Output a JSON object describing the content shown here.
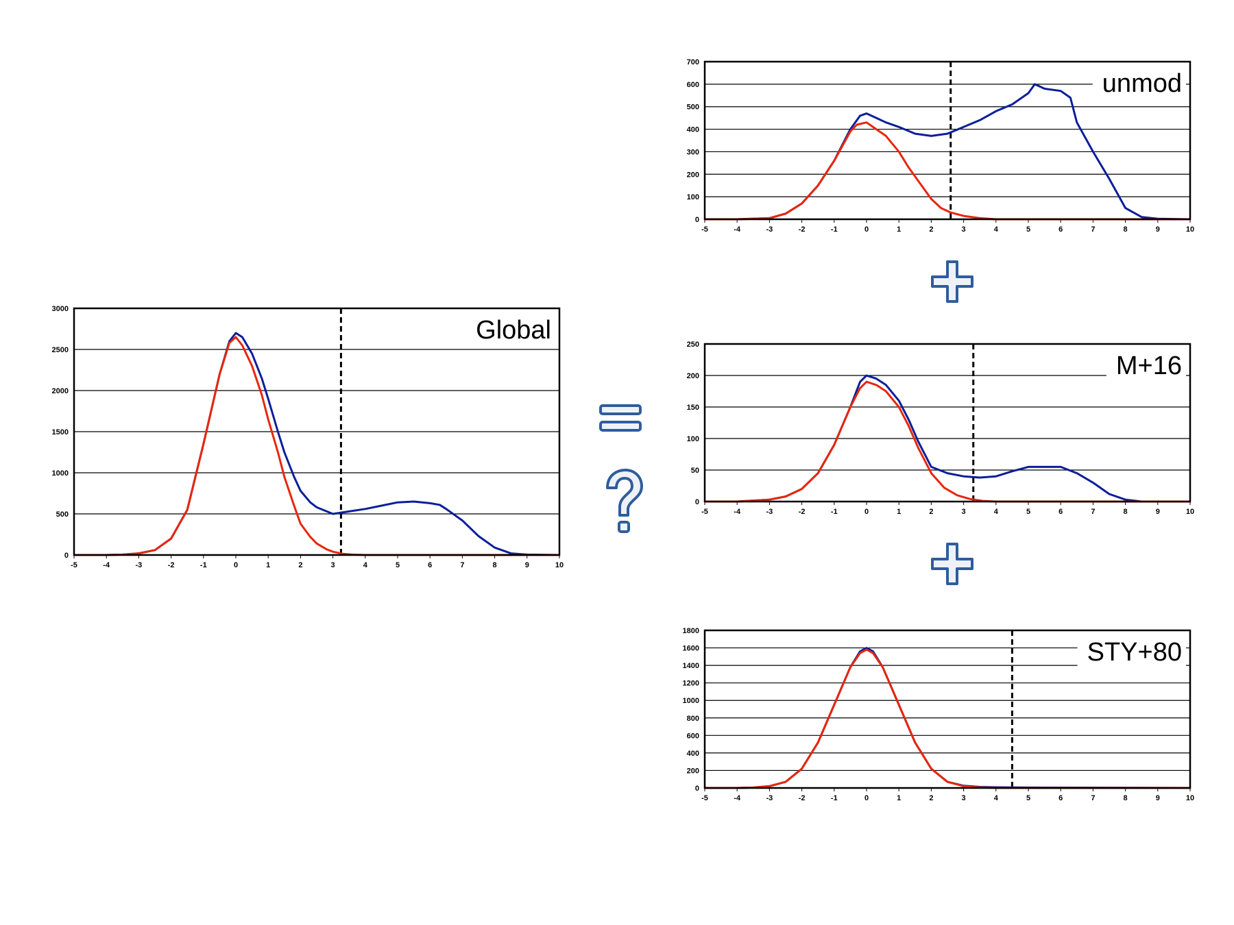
{
  "colors": {
    "blue_series": "#0b1e9a",
    "red_series": "#e8260c",
    "symbol_fill": "#eef2f8",
    "symbol_stroke": "#2f5d9c",
    "grid": "#000000",
    "threshold": "#000000"
  },
  "symbols": {
    "equals_icon": "equals-sign-icon",
    "question_icon": "question-mark-icon",
    "plus_icon": "plus-sign-icon"
  },
  "chart_data": [
    {
      "id": "global",
      "type": "line",
      "title": "Global",
      "xlim": [
        -5,
        10
      ],
      "ylim": [
        0,
        3000
      ],
      "x_ticks": [
        -5,
        -4,
        -3,
        -2,
        -1,
        0,
        1,
        2,
        3,
        4,
        5,
        6,
        7,
        8,
        9,
        10
      ],
      "y_ticks": [
        0,
        500,
        1000,
        1500,
        2000,
        2500,
        3000
      ],
      "grid": true,
      "threshold_x": 3.25,
      "series": [
        {
          "color": "blue",
          "x": [
            -5,
            -4,
            -3.5,
            -3,
            -2.5,
            -2,
            -1.5,
            -1,
            -0.5,
            -0.2,
            0,
            0.2,
            0.5,
            0.8,
            1,
            1.3,
            1.5,
            1.8,
            2,
            2.3,
            2.5,
            3,
            3.5,
            4,
            4.5,
            5,
            5.5,
            6,
            6.3,
            6.5,
            7,
            7.5,
            8,
            8.5,
            9,
            10
          ],
          "y": [
            0,
            0,
            5,
            20,
            60,
            200,
            550,
            1350,
            2200,
            2600,
            2700,
            2650,
            2450,
            2150,
            1900,
            1500,
            1250,
            950,
            780,
            640,
            580,
            500,
            530,
            560,
            600,
            640,
            650,
            630,
            610,
            560,
            420,
            230,
            90,
            20,
            5,
            0
          ]
        },
        {
          "color": "red",
          "x": [
            -5,
            -4,
            -3.5,
            -3,
            -2.5,
            -2,
            -1.5,
            -1,
            -0.5,
            -0.2,
            0,
            0.2,
            0.5,
            0.8,
            1,
            1.3,
            1.5,
            1.8,
            2,
            2.3,
            2.5,
            2.8,
            3,
            3.3,
            3.6,
            4,
            5,
            10
          ],
          "y": [
            0,
            0,
            5,
            20,
            60,
            200,
            550,
            1350,
            2200,
            2580,
            2650,
            2550,
            2300,
            1950,
            1650,
            1250,
            950,
            600,
            380,
            220,
            140,
            70,
            40,
            15,
            5,
            0,
            0,
            0
          ]
        }
      ]
    },
    {
      "id": "unmod",
      "type": "line",
      "title": "unmod",
      "xlim": [
        -5,
        10
      ],
      "ylim": [
        0,
        700
      ],
      "x_ticks": [
        -5,
        -4,
        -3,
        -2,
        -1,
        0,
        1,
        2,
        3,
        4,
        5,
        6,
        7,
        8,
        9,
        10
      ],
      "y_ticks": [
        0,
        100,
        200,
        300,
        400,
        500,
        600,
        700
      ],
      "grid": true,
      "threshold_x": 2.6,
      "series": [
        {
          "color": "blue",
          "x": [
            -5,
            -4,
            -3,
            -2.5,
            -2,
            -1.5,
            -1,
            -0.5,
            -0.2,
            0,
            0.3,
            0.6,
            1,
            1.5,
            2,
            2.5,
            3,
            3.5,
            4,
            4.5,
            5,
            5.2,
            5.5,
            6,
            6.3,
            6.5,
            7,
            7.5,
            8,
            8.5,
            9,
            10
          ],
          "y": [
            0,
            0,
            5,
            25,
            70,
            150,
            260,
            400,
            460,
            470,
            450,
            430,
            410,
            380,
            370,
            380,
            410,
            440,
            480,
            510,
            560,
            600,
            580,
            570,
            540,
            430,
            300,
            180,
            50,
            10,
            2,
            0
          ]
        },
        {
          "color": "red",
          "x": [
            -5,
            -4,
            -3,
            -2.5,
            -2,
            -1.5,
            -1,
            -0.5,
            -0.3,
            0,
            0.3,
            0.6,
            1,
            1.3,
            1.6,
            2,
            2.3,
            2.6,
            3,
            3.5,
            4,
            5,
            10
          ],
          "y": [
            0,
            0,
            5,
            25,
            70,
            150,
            260,
            390,
            420,
            430,
            400,
            370,
            300,
            230,
            170,
            90,
            50,
            30,
            15,
            5,
            0,
            0,
            0
          ]
        }
      ]
    },
    {
      "id": "m16",
      "type": "line",
      "title": "M+16",
      "xlim": [
        -5,
        10
      ],
      "ylim": [
        0,
        250
      ],
      "x_ticks": [
        -5,
        -4,
        -3,
        -2,
        -1,
        0,
        1,
        2,
        3,
        4,
        5,
        6,
        7,
        8,
        9,
        10
      ],
      "y_ticks": [
        0,
        50,
        100,
        150,
        200,
        250
      ],
      "grid": true,
      "threshold_x": 3.3,
      "series": [
        {
          "color": "blue",
          "x": [
            -5,
            -4,
            -3,
            -2.5,
            -2,
            -1.5,
            -1,
            -0.5,
            -0.2,
            0,
            0.3,
            0.6,
            1,
            1.3,
            1.6,
            2,
            2.5,
            3,
            3.5,
            4,
            4.5,
            5,
            5.5,
            6,
            6.5,
            7,
            7.5,
            8,
            8.5,
            10
          ],
          "y": [
            0,
            0,
            3,
            8,
            20,
            45,
            90,
            150,
            190,
            200,
            195,
            185,
            160,
            130,
            95,
            55,
            45,
            40,
            38,
            40,
            48,
            55,
            55,
            55,
            45,
            30,
            12,
            3,
            0,
            0
          ]
        },
        {
          "color": "red",
          "x": [
            -5,
            -4,
            -3,
            -2.5,
            -2,
            -1.5,
            -1,
            -0.5,
            -0.2,
            0,
            0.3,
            0.6,
            1,
            1.3,
            1.6,
            2,
            2.4,
            2.8,
            3.2,
            3.6,
            4,
            5,
            10
          ],
          "y": [
            0,
            0,
            3,
            8,
            20,
            45,
            90,
            150,
            180,
            190,
            185,
            175,
            150,
            120,
            85,
            45,
            22,
            10,
            4,
            1,
            0,
            0,
            0
          ]
        }
      ]
    },
    {
      "id": "sty80",
      "type": "line",
      "title": "STY+80",
      "xlim": [
        -5,
        10
      ],
      "ylim": [
        0,
        1800
      ],
      "x_ticks": [
        -5,
        -4,
        -3,
        -2,
        -1,
        0,
        1,
        2,
        3,
        4,
        5,
        6,
        7,
        8,
        9,
        10
      ],
      "y_ticks": [
        0,
        200,
        400,
        600,
        800,
        1000,
        1200,
        1400,
        1600,
        1800
      ],
      "grid": true,
      "threshold_x": 4.5,
      "series": [
        {
          "color": "blue",
          "x": [
            -5,
            -4,
            -3.5,
            -3,
            -2.5,
            -2,
            -1.5,
            -1,
            -0.5,
            -0.2,
            0,
            0.2,
            0.5,
            1,
            1.5,
            2,
            2.5,
            3,
            3.5,
            4,
            5,
            10
          ],
          "y": [
            0,
            0,
            5,
            20,
            70,
            220,
            520,
            950,
            1380,
            1560,
            1600,
            1560,
            1380,
            950,
            520,
            220,
            70,
            25,
            12,
            8,
            5,
            0
          ]
        },
        {
          "color": "red",
          "x": [
            -5,
            -4,
            -3.5,
            -3,
            -2.5,
            -2,
            -1.5,
            -1,
            -0.5,
            -0.2,
            0,
            0.2,
            0.5,
            1,
            1.5,
            2,
            2.5,
            3,
            3.5,
            4,
            5,
            10
          ],
          "y": [
            0,
            0,
            5,
            20,
            70,
            220,
            520,
            950,
            1380,
            1540,
            1580,
            1540,
            1380,
            950,
            520,
            220,
            70,
            20,
            5,
            1,
            0,
            0
          ]
        }
      ]
    }
  ]
}
